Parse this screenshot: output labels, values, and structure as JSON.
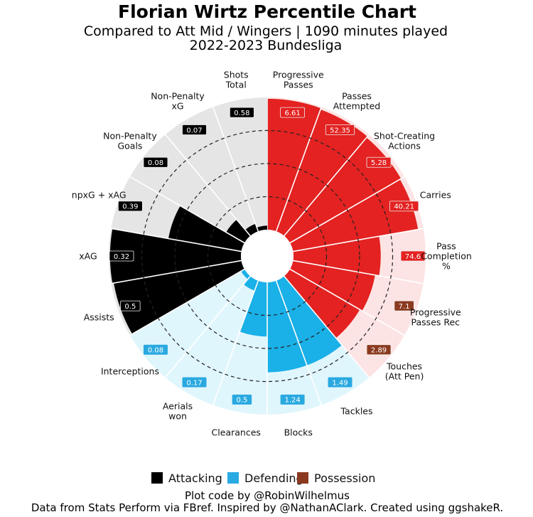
{
  "chart_data": {
    "type": "pie",
    "subtype": "polar-bar percentile (pizza) chart",
    "title": "Florian Wirtz Percentile Chart",
    "subtitle": [
      "Compared to Att Mid / Wingers | 1090 minutes played",
      "2022-2023 Bundesliga"
    ],
    "percentile_range": [
      0,
      100
    ],
    "gridlines_percentile": [
      25,
      50,
      75
    ],
    "colors": {
      "Attacking": {
        "bar": "#000000",
        "background": "#e5e5e5",
        "legend": "#000000"
      },
      "Possession": {
        "bar": "#e32221",
        "background": "#fde4e4",
        "legend": "#8b3a1f"
      },
      "Defending": {
        "bar": "#1ab0e8",
        "background": "#e0f6fd",
        "legend": "#29abe2"
      }
    },
    "slices": [
      {
        "label": [
          "Progressive",
          "Passes"
        ],
        "value": "6.61",
        "percentile": 99,
        "group": "Possession"
      },
      {
        "label": [
          "Passes",
          "Attempted"
        ],
        "value": "52.35",
        "percentile": 98,
        "group": "Possession"
      },
      {
        "label": [
          "Shot-Creating",
          "Actions"
        ],
        "value": "5.28",
        "percentile": 97,
        "group": "Possession"
      },
      {
        "label": [
          "Carries"
        ],
        "value": "40.21",
        "percentile": 96,
        "group": "Possession"
      },
      {
        "label": [
          "Pass",
          "Completion",
          "%"
        ],
        "value": "74.6",
        "percentile": 66,
        "group": "Possession"
      },
      {
        "label": [
          "Progressive",
          "Passes Rec"
        ],
        "value": "7.1",
        "percentile": 63,
        "group": "Possession"
      },
      {
        "label": [
          "Touches",
          "(Att Pen)"
        ],
        "value": "2.89",
        "percentile": 61,
        "group": "Possession"
      },
      {
        "label": [
          "Tackles"
        ],
        "value": "1.49",
        "percentile": 68,
        "group": "Defending"
      },
      {
        "label": [
          "Blocks"
        ],
        "value": "1.24",
        "percentile": 68,
        "group": "Defending"
      },
      {
        "label": [
          "Clearances"
        ],
        "value": "0.5",
        "percentile": 41,
        "group": "Defending"
      },
      {
        "label": [
          "Aerials",
          "won"
        ],
        "value": "0.17",
        "percentile": 8,
        "group": "Defending"
      },
      {
        "label": [
          "Interceptions"
        ],
        "value": "0.08",
        "percentile": 3,
        "group": "Defending"
      },
      {
        "label": [
          "Assists"
        ],
        "value": "0.5",
        "percentile": 98,
        "group": "Attacking"
      },
      {
        "label": [
          "xAG"
        ],
        "value": "0.32",
        "percentile": 99,
        "group": "Attacking"
      },
      {
        "label": [
          "npxG + xAG"
        ],
        "value": "0.39",
        "percentile": 56,
        "group": "Attacking"
      },
      {
        "label": [
          "Non-Penalty",
          "Goals"
        ],
        "value": "0.08",
        "percentile": 16,
        "group": "Attacking"
      },
      {
        "label": [
          "Non-Penalty",
          "xG"
        ],
        "value": "0.07",
        "percentile": 6,
        "group": "Attacking"
      },
      {
        "label": [
          "Shots",
          "Total"
        ],
        "value": "0.58",
        "percentile": 3,
        "group": "Attacking"
      }
    ],
    "legend": {
      "placement": "bottom",
      "entries": [
        "Attacking",
        "Defending",
        "Possession"
      ]
    }
  },
  "footer": {
    "line1": "Plot code by @RobinWilhelmus",
    "line2": "Data from Stats Perform via FBref. Inspired by @NathanAClark. Created using ggshakeR."
  }
}
